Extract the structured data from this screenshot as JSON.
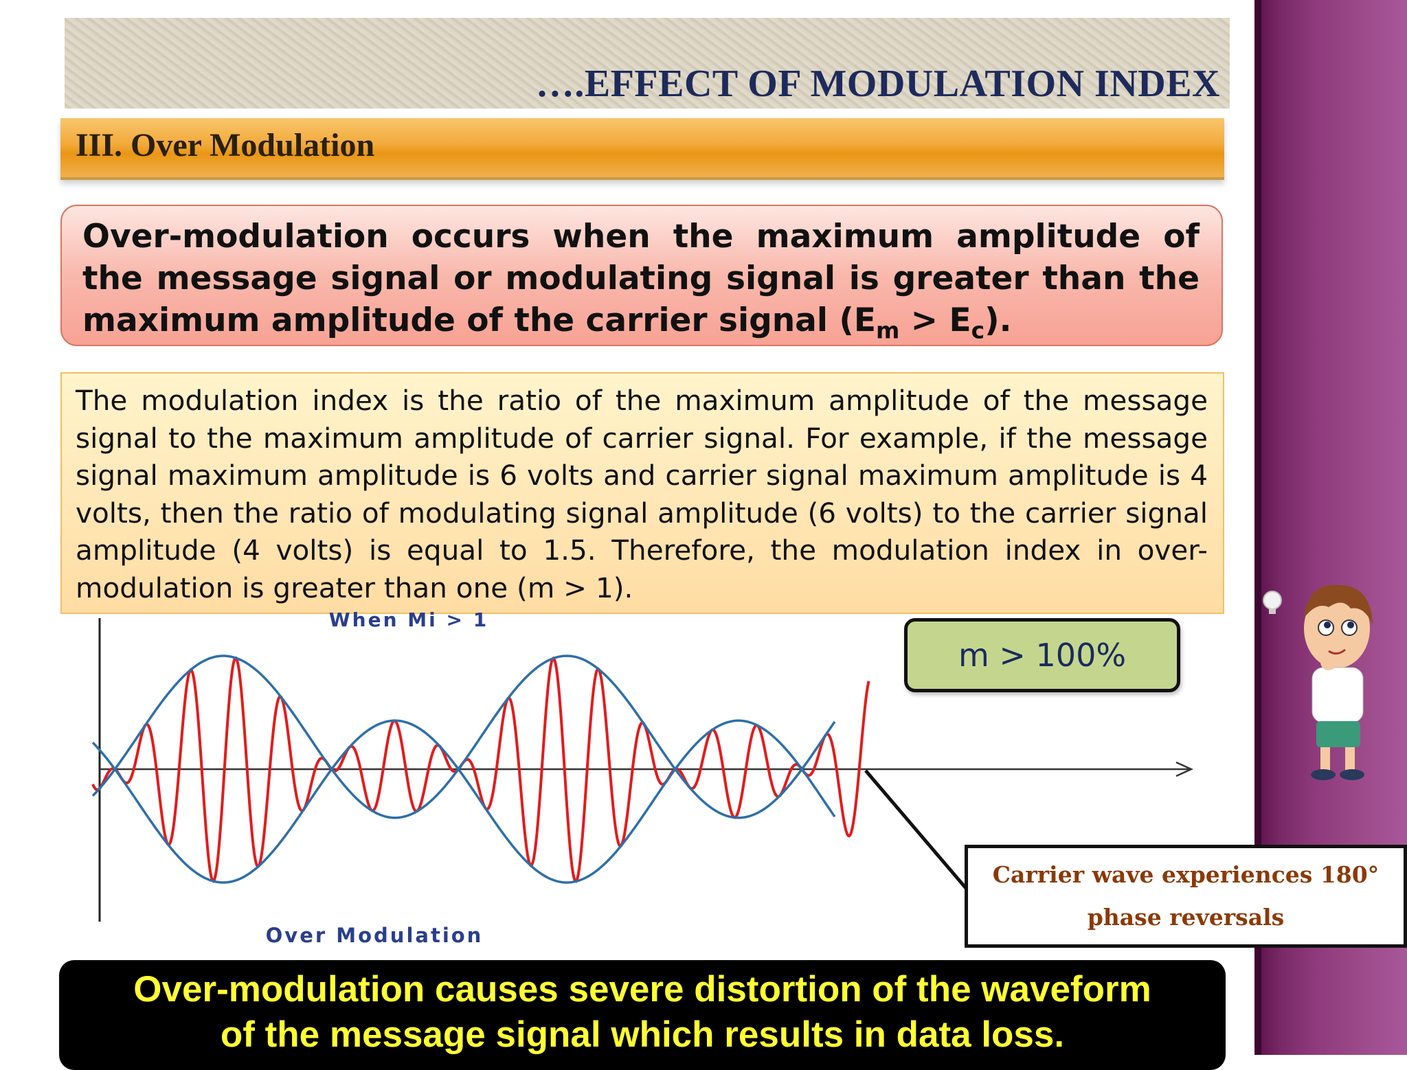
{
  "header": {
    "title": "….EFFECT OF MODULATION INDEX"
  },
  "section": {
    "heading": "III. Over Modulation"
  },
  "definition": {
    "text_before": "Over-modulation occurs when the maximum amplitude of the message signal or modulating signal is greater than the maximum amplitude of the carrier signal (E",
    "sub_m": "m",
    "text_mid": " > E",
    "sub_c": "c",
    "text_after": ")."
  },
  "explanation": {
    "text": "The modulation index is the ratio of the maximum amplitude of the message signal to the maximum amplitude of carrier signal. For example, if the message signal maximum amplitude is 6 volts and carrier signal maximum amplitude is 4 volts, then the ratio of modulating signal amplitude (6 volts) to the carrier signal amplitude (4 volts) is equal to 1.5. Therefore, the modulation index in over-modulation is greater than one (m > 1)."
  },
  "figure": {
    "top_label": "When Mi > 1",
    "bottom_label": "Over Modulation",
    "envelope_color": "#2e6fa8",
    "carrier_color": "#e01d1d"
  },
  "index_badge": {
    "text": "m > 100%"
  },
  "callout": {
    "line1": "Carrier wave experiences 180°",
    "line2": "phase reversals"
  },
  "conclusion": {
    "line1": "Over-modulation causes severe distortion of the waveform",
    "line2": "of the message signal which results in data loss."
  },
  "theme": {
    "side_band": "#8e3a7c",
    "title_color": "#1e2a5c",
    "section_bar": "#f2a93a"
  }
}
